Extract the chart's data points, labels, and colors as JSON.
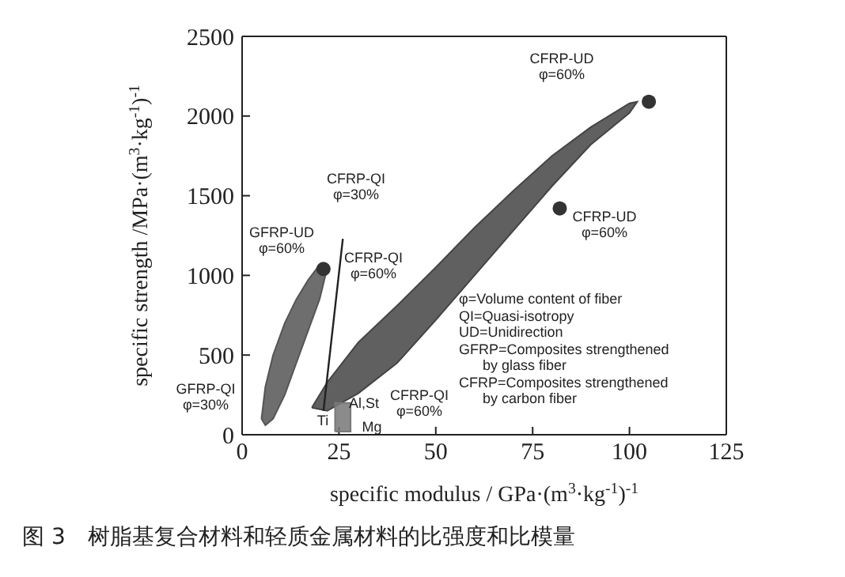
{
  "chart_data": {
    "type": "scatter",
    "xlabel": "specific modulus / GPa·(m$^{3}$·kg$^{-1}$)$^{-1}$",
    "ylabel": "specific strength /MPa·(m$^{3}$·kg$^{-1}$)$^{-1}$",
    "xlim": [
      0,
      125
    ],
    "xticks": [
      0,
      25,
      50,
      75,
      100,
      125
    ],
    "ylim": [
      0,
      2500
    ],
    "yticks": [
      0,
      500,
      1000,
      1500,
      2000,
      2500
    ],
    "grid": false,
    "legend": false,
    "series": [
      {
        "type": "area",
        "color": "#555555",
        "x": [
          5,
          6,
          8,
          11,
          14,
          17,
          19.5,
          21,
          21.5,
          20,
          17,
          14,
          11,
          8,
          6,
          5
        ],
        "values": [
          100,
          300,
          500,
          700,
          850,
          970,
          1050,
          1050,
          1000,
          850,
          650,
          450,
          250,
          100,
          60,
          100
        ]
      },
      {
        "type": "area",
        "color": "#444444",
        "x": [
          18,
          22,
          30,
          40,
          50,
          60,
          70,
          80,
          90,
          100,
          102,
          100,
          90,
          80,
          70,
          60,
          50,
          40,
          30,
          22,
          18
        ],
        "values": [
          170,
          330,
          580,
          810,
          1050,
          1300,
          1530,
          1750,
          1930,
          2080,
          2090,
          2020,
          1820,
          1560,
          1280,
          1000,
          720,
          450,
          260,
          150,
          170
        ]
      },
      {
        "type": "area",
        "color": "#777777",
        "x": [
          24,
          24,
          28,
          28,
          24
        ],
        "values": [
          20,
          200,
          200,
          20,
          20
        ]
      },
      {
        "type": "line",
        "color": "#222222",
        "x": [
          21,
          26
        ],
        "values": [
          150,
          1230
        ]
      },
      {
        "color": "#333333",
        "marker": "circle",
        "x": [
          21,
          82,
          105
        ],
        "values": [
          1040,
          1420,
          2090
        ]
      }
    ],
    "annotations": [
      "CFRP-UD\nφ=60%",
      "CFRP-UD\nφ=60%",
      "CFRP-QI\nφ=30%",
      "GFRP-UD\nφ=60%",
      "CFRP-QI\nφ=60%",
      "GFRP-QI\nφ=30%",
      "CFRP-QI\nφ=60%",
      "Ti",
      "Al,St",
      "Mg",
      "φ=Volume content of fiber\nQI=Quasi-isotropy\nUD=Unidirection\nGFRP=Composites strengthened\n      by glass fiber\nCFRP=Composites strengthened\n      by carbon fiber",
      "图 3　树脂基复合材料和轻质金属材料的比强度和比模量"
    ]
  }
}
